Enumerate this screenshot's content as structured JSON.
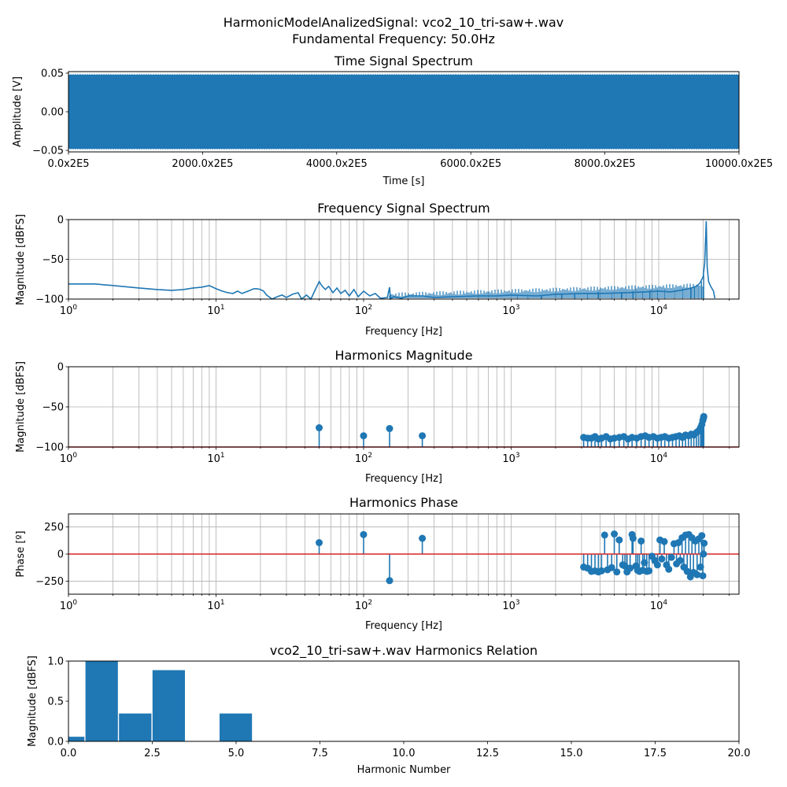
{
  "figure": {
    "suptitle_line1": "HarmonicModelAnalizedSignal: vco2_10_tri-saw+.wav",
    "suptitle_line2": "Fundamental Frequency: 50.0Hz"
  },
  "colors": {
    "series": "#1f77b4",
    "baseline": "#d62728",
    "grid": "#b0b0b0",
    "axis": "#000000"
  },
  "chart_data": [
    {
      "id": "time",
      "type": "area",
      "title": "Time Signal Spectrum",
      "xlabel": "Time [s]",
      "ylabel": "Amplitude [V]",
      "xlim": [
        0,
        10000
      ],
      "ylim": [
        -0.052,
        0.052
      ],
      "xticks": [
        0,
        2000,
        4000,
        6000,
        8000,
        10000
      ],
      "xtick_labels": [
        "0.0x2E5",
        "2000.0x2E5",
        "4000.0x2E5",
        "6000.0x2E5",
        "8000.0x2E5",
        "10000.0x2E5"
      ],
      "yticks": [
        -0.05,
        0,
        0.05
      ],
      "ytick_labels": [
        "−0.05",
        "0.00",
        "0.05"
      ],
      "envelope": [
        -0.048,
        0.048
      ],
      "grid": false
    },
    {
      "id": "spectrum",
      "type": "line",
      "title": "Frequency Signal Spectrum",
      "xlabel": "Frequency [Hz]",
      "ylabel": "Magnitude [dBFS]",
      "xscale": "log",
      "xlim": [
        1,
        35000
      ],
      "ylim": [
        -100,
        0
      ],
      "yticks": [
        0,
        -50,
        -100
      ],
      "ytick_labels": [
        "0",
        "−50",
        "−100"
      ],
      "grid": true,
      "points": [
        [
          1,
          -81
        ],
        [
          1.5,
          -81
        ],
        [
          2,
          -83
        ],
        [
          3,
          -86
        ],
        [
          4,
          -88
        ],
        [
          5,
          -89
        ],
        [
          6,
          -88
        ],
        [
          7,
          -86
        ],
        [
          8,
          -85
        ],
        [
          9,
          -83
        ],
        [
          10,
          -87
        ],
        [
          11,
          -90
        ],
        [
          12,
          -92
        ],
        [
          13,
          -93
        ],
        [
          14,
          -90
        ],
        [
          15,
          -93
        ],
        [
          16,
          -91
        ],
        [
          17,
          -89
        ],
        [
          18,
          -87
        ],
        [
          19,
          -87
        ],
        [
          20,
          -88
        ],
        [
          21,
          -90
        ],
        [
          22,
          -95
        ],
        [
          24,
          -100
        ],
        [
          26,
          -97
        ],
        [
          28,
          -95
        ],
        [
          30,
          -98
        ],
        [
          33,
          -94
        ],
        [
          36,
          -92
        ],
        [
          38,
          -100
        ],
        [
          41,
          -95
        ],
        [
          44,
          -100
        ],
        [
          46,
          -92
        ],
        [
          48,
          -85
        ],
        [
          50,
          -78
        ],
        [
          52,
          -83
        ],
        [
          55,
          -88
        ],
        [
          58,
          -84
        ],
        [
          62,
          -92
        ],
        [
          66,
          -86
        ],
        [
          70,
          -93
        ],
        [
          75,
          -89
        ],
        [
          80,
          -96
        ],
        [
          86,
          -88
        ],
        [
          92,
          -97
        ],
        [
          100,
          -90
        ],
        [
          110,
          -96
        ],
        [
          120,
          -93
        ],
        [
          130,
          -99
        ],
        [
          145,
          -98
        ],
        [
          150,
          -85
        ],
        [
          152,
          -100
        ],
        [
          160,
          -97
        ],
        [
          180,
          -99
        ],
        [
          200,
          -96
        ],
        [
          250,
          -96
        ],
        [
          300,
          -98
        ],
        [
          400,
          -97
        ],
        [
          600,
          -96
        ],
        [
          800,
          -96
        ],
        [
          1000,
          -95
        ],
        [
          1500,
          -96
        ],
        [
          2000,
          -94
        ],
        [
          3000,
          -93
        ],
        [
          4000,
          -93
        ],
        [
          6000,
          -92
        ],
        [
          8000,
          -91
        ],
        [
          10000,
          -90
        ],
        [
          12000,
          -91
        ],
        [
          14000,
          -89
        ],
        [
          16000,
          -87
        ],
        [
          18000,
          -84
        ],
        [
          19000,
          -80
        ],
        [
          20000,
          -72
        ],
        [
          20500,
          -55
        ],
        [
          21000,
          -2
        ],
        [
          21300,
          -60
        ],
        [
          21800,
          -78
        ],
        [
          22500,
          -84
        ],
        [
          23500,
          -90
        ],
        [
          24000,
          -99
        ]
      ],
      "spikes": [
        [
          1100,
          -95
        ],
        [
          1300,
          -94
        ],
        [
          1600,
          -95
        ],
        [
          2200,
          -93
        ],
        [
          2700,
          -94
        ],
        [
          3300,
          -92
        ],
        [
          3900,
          -91
        ],
        [
          4800,
          -92
        ],
        [
          5600,
          -91
        ],
        [
          6700,
          -90
        ],
        [
          7800,
          -90
        ],
        [
          8700,
          -89
        ],
        [
          9800,
          -88
        ],
        [
          11000,
          -88
        ],
        [
          12800,
          -88
        ],
        [
          14500,
          -87
        ],
        [
          16500,
          -86
        ],
        [
          17500,
          -84
        ],
        [
          18500,
          -82
        ],
        [
          19500,
          -78
        ],
        [
          20200,
          -70
        ]
      ]
    },
    {
      "id": "harm-mag",
      "type": "scatter",
      "title": "Harmonics Magnitude",
      "xlabel": "Frequency [Hz]",
      "ylabel": "Magnitude [dBFS]",
      "xscale": "log",
      "xlim": [
        1,
        35000
      ],
      "ylim": [
        -100,
        0
      ],
      "baseline": -100,
      "yticks": [
        0,
        -50,
        -100
      ],
      "ytick_labels": [
        "0",
        "−50",
        "−100"
      ],
      "grid": true,
      "points": [
        [
          50,
          -76
        ],
        [
          100,
          -86
        ],
        [
          150,
          -77
        ],
        [
          250,
          -86
        ],
        [
          3100,
          -88
        ],
        [
          3300,
          -89
        ],
        [
          3500,
          -89
        ],
        [
          3700,
          -87
        ],
        [
          3900,
          -90
        ],
        [
          4100,
          -89
        ],
        [
          4400,
          -87
        ],
        [
          4700,
          -90
        ],
        [
          5000,
          -89
        ],
        [
          5400,
          -88
        ],
        [
          5800,
          -87
        ],
        [
          6200,
          -90
        ],
        [
          6600,
          -88
        ],
        [
          7100,
          -89
        ],
        [
          7600,
          -87
        ],
        [
          8100,
          -86
        ],
        [
          8600,
          -88
        ],
        [
          9200,
          -87
        ],
        [
          9800,
          -89
        ],
        [
          10400,
          -88
        ],
        [
          11000,
          -87
        ],
        [
          11700,
          -89
        ],
        [
          12400,
          -88
        ],
        [
          13100,
          -87
        ],
        [
          13800,
          -86
        ],
        [
          14500,
          -88
        ],
        [
          15200,
          -85
        ],
        [
          15900,
          -86
        ],
        [
          16600,
          -84
        ],
        [
          17300,
          -85
        ],
        [
          18000,
          -82
        ],
        [
          18600,
          -80
        ],
        [
          19200,
          -76
        ],
        [
          19600,
          -72
        ],
        [
          19900,
          -67
        ],
        [
          20100,
          -64
        ],
        [
          20200,
          -62
        ]
      ]
    },
    {
      "id": "harm-phase",
      "type": "scatter",
      "title": "Harmonics Phase",
      "xlabel": "Frequency [Hz]",
      "ylabel": "Phase [º]",
      "xscale": "log",
      "xlim": [
        1,
        35000
      ],
      "ylim": [
        -370,
        370
      ],
      "baseline": 0,
      "yticks": [
        250,
        0,
        -250
      ],
      "ytick_labels": [
        "250",
        "0",
        "−250"
      ],
      "grid": true,
      "points": [
        [
          50,
          105
        ],
        [
          100,
          180
        ],
        [
          150,
          -245
        ],
        [
          250,
          145
        ],
        [
          3100,
          -120
        ],
        [
          3300,
          -130
        ],
        [
          3500,
          -160
        ],
        [
          3700,
          -155
        ],
        [
          3900,
          -165
        ],
        [
          4100,
          -155
        ],
        [
          4300,
          175
        ],
        [
          4500,
          -145
        ],
        [
          4800,
          -125
        ],
        [
          5000,
          185
        ],
        [
          5200,
          -165
        ],
        [
          5400,
          130
        ],
        [
          5700,
          -100
        ],
        [
          5900,
          -110
        ],
        [
          6100,
          -165
        ],
        [
          6400,
          -130
        ],
        [
          6600,
          180
        ],
        [
          6700,
          145
        ],
        [
          7000,
          -110
        ],
        [
          7200,
          -150
        ],
        [
          7400,
          -160
        ],
        [
          7600,
          120
        ],
        [
          7800,
          -150
        ],
        [
          8000,
          -80
        ],
        [
          8300,
          -160
        ],
        [
          8600,
          -155
        ],
        [
          9000,
          -20
        ],
        [
          9400,
          -60
        ],
        [
          9800,
          -100
        ],
        [
          10200,
          130
        ],
        [
          10500,
          -45
        ],
        [
          10900,
          115
        ],
        [
          11300,
          -100
        ],
        [
          11700,
          -140
        ],
        [
          12200,
          -30
        ],
        [
          12700,
          95
        ],
        [
          13200,
          -90
        ],
        [
          13600,
          105
        ],
        [
          14000,
          -60
        ],
        [
          14400,
          150
        ],
        [
          14800,
          -120
        ],
        [
          15200,
          175
        ],
        [
          15600,
          -160
        ],
        [
          16000,
          180
        ],
        [
          16400,
          -210
        ],
        [
          16800,
          150
        ],
        [
          17200,
          -170
        ],
        [
          17700,
          120
        ],
        [
          18200,
          -190
        ],
        [
          18700,
          140
        ],
        [
          19200,
          -120
        ],
        [
          19600,
          170
        ],
        [
          19900,
          -200
        ],
        [
          20100,
          0
        ],
        [
          20300,
          100
        ]
      ]
    },
    {
      "id": "relation",
      "type": "bar",
      "title": "vco2_10_tri-saw+.wav Harmonics Relation",
      "xlabel": "Harmonic Number",
      "ylabel": "Magnitude [dBFS]",
      "xlim": [
        0,
        20
      ],
      "ylim": [
        0,
        1.0
      ],
      "xticks": [
        0,
        2.5,
        5,
        7.5,
        10,
        12.5,
        15,
        17.5,
        20
      ],
      "xtick_labels": [
        "0.0",
        "2.5",
        "5.0",
        "7.5",
        "10.0",
        "12.5",
        "15.0",
        "17.5",
        "20.0"
      ],
      "yticks": [
        0,
        0.5,
        1.0
      ],
      "ytick_labels": [
        "0.0",
        "0.5",
        "1.0"
      ],
      "grid": false,
      "categories": [
        0,
        1,
        2,
        3,
        4,
        5
      ],
      "values": [
        0.06,
        1.0,
        0.35,
        0.89,
        0.0,
        0.35
      ]
    }
  ]
}
